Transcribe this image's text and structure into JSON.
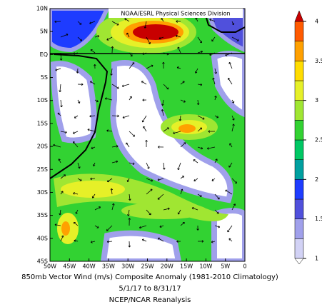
{
  "map": {
    "label": "NOAA/ESRL Physical Sciences Division",
    "lat_labels": [
      "10N",
      "5N",
      "EQ",
      "5S",
      "10S",
      "15S",
      "20S",
      "25S",
      "30S",
      "35S",
      "40S",
      "45S"
    ],
    "lon_labels": [
      "50W",
      "45W",
      "40W",
      "35W",
      "30W",
      "25W",
      "20W",
      "15W",
      "10W",
      "5W",
      "0"
    ],
    "caption": [
      "850mb Vector Wind (m/s) Composite Anomaly (1981-2010 Climatology)",
      "5/1/17  to 8/31/17",
      "NCEP/NCAR Reanalysis"
    ]
  },
  "colorbar": {
    "lim": [
      1,
      4
    ],
    "ticks": [
      1,
      1.5,
      2,
      2.5,
      3,
      3.5,
      4
    ],
    "under_color": "#ffffff",
    "over_color": "#c80000",
    "colors": [
      "#d2d2f5",
      "#a0a0eb",
      "#5050dc",
      "#1e3cff",
      "#00a0a0",
      "#00c864",
      "#32d232",
      "#a0e632",
      "#e6f028",
      "#ffdc00",
      "#ffa000",
      "#ff5a00"
    ]
  }
}
